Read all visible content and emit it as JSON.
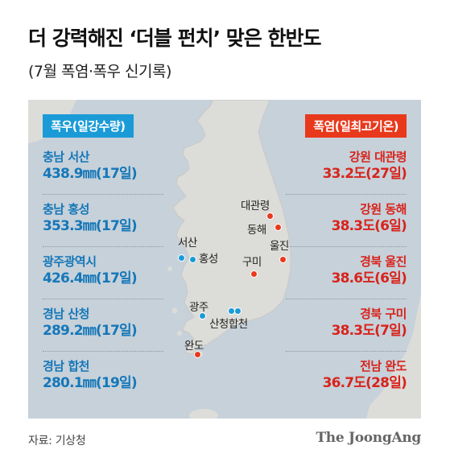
{
  "header": {
    "title": "더 강력해진 ‘더블 펀치’ 맞은 한반도",
    "subtitle": "(7월 폭염·폭우 신기록)"
  },
  "legend": {
    "rain_label": "폭우(일강수량)",
    "heat_label": "폭염(일최고기온)"
  },
  "colors": {
    "rain": "#1a9bd7",
    "heat": "#e8391c",
    "sea": "#c6d1da",
    "land": "#dcdcd9"
  },
  "rain_records": [
    {
      "region": "충남 서산",
      "value": "438.9㎜(17일)"
    },
    {
      "region": "충남 홍성",
      "value": "353.3㎜(17일)"
    },
    {
      "region": "광주광역시",
      "value": "426.4㎜(17일)"
    },
    {
      "region": "경남 산청",
      "value": "289.2㎜(17일)"
    },
    {
      "region": "경남 합천",
      "value": "280.1㎜(19일)"
    }
  ],
  "heat_records": [
    {
      "region": "강원 대관령",
      "value": "33.2도(27일)"
    },
    {
      "region": "강원 동해",
      "value": "38.3도(6일)"
    },
    {
      "region": "경북 울진",
      "value": "38.6도(6일)"
    },
    {
      "region": "경북 구미",
      "value": "38.3도(7일)"
    },
    {
      "region": "전남 완도",
      "value": "36.7도(28일)"
    }
  ],
  "map_labels": {
    "seosan": "서산",
    "hongseong": "홍성",
    "gwangju": "광주",
    "sancheong_hapcheon": "산청합천",
    "wando": "완도",
    "daegwallyeong": "대관령",
    "donghae": "동해",
    "uljin": "울진",
    "gumi": "구미"
  },
  "footer": {
    "source": "자료: 기상청",
    "logo": "The JoongAng"
  }
}
